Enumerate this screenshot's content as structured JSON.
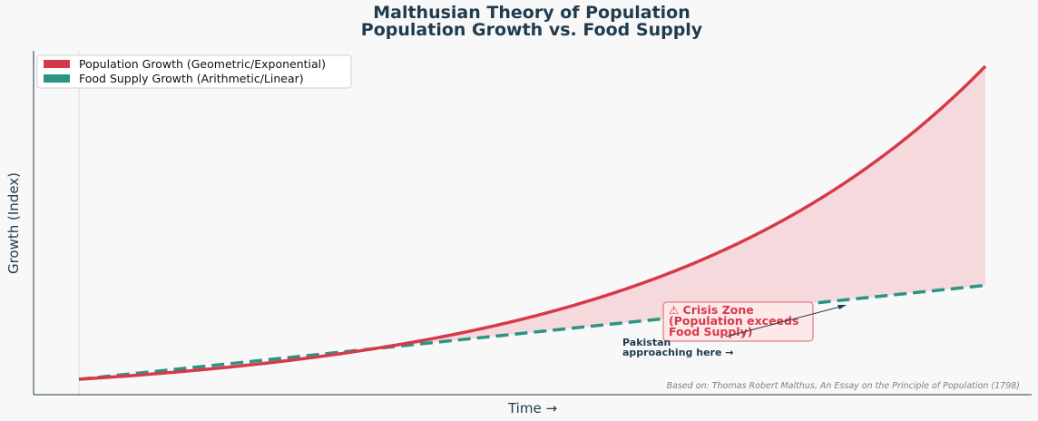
{
  "chart_data": {
    "type": "line",
    "title": "Malthusian Theory of Population",
    "subtitle": "Population Growth vs. Food Supply",
    "xlabel": "Time →",
    "ylabel": "Growth (Index)",
    "xlim": [
      0,
      10
    ],
    "ylim": [
      0.5,
      17
    ],
    "grid": false,
    "legend_position": "top-left",
    "series": [
      {
        "name": "Population Growth (Geometric/Exponential)",
        "style": "solid",
        "color": "#d63a48",
        "x": [
          0,
          0.5,
          1,
          1.5,
          2,
          2.5,
          3,
          3.5,
          4,
          4.5,
          5,
          5.5,
          6,
          6.5,
          7,
          7.5,
          8,
          8.5,
          9,
          9.5,
          10
        ],
        "y": [
          1.0,
          1.15,
          1.32,
          1.52,
          1.74,
          2.0,
          2.3,
          2.64,
          3.03,
          3.48,
          4.0,
          4.59,
          5.28,
          6.06,
          6.96,
          7.99,
          9.19,
          10.55,
          12.13,
          13.93,
          16.0
        ]
      },
      {
        "name": "Food Supply Growth (Arithmetic/Linear)",
        "style": "dashed",
        "color": "#2a9485",
        "x": [
          0,
          10
        ],
        "y": [
          1.0,
          5.5
        ]
      }
    ],
    "annotations": [
      {
        "text_lines": [
          "⚠ Crisis Zone",
          "(Population exceeds",
          "Food Supply)"
        ],
        "role": "crisis-zone",
        "near": {
          "x": 8.0,
          "y": 4.9
        }
      },
      {
        "text_lines": [
          "Pakistan",
          "approaching here →"
        ],
        "role": "pakistan-note",
        "near": {
          "x": 6.0,
          "y": 3.7
        }
      }
    ],
    "source": "Based on: Thomas Robert Malthus, An Essay on the Principle of Population (1798)"
  },
  "colors": {
    "background": "#f8f8f8",
    "population": "#d63a48",
    "food": "#2a9485",
    "fill": "#f5c5cb",
    "title": "#1f3b4d"
  }
}
